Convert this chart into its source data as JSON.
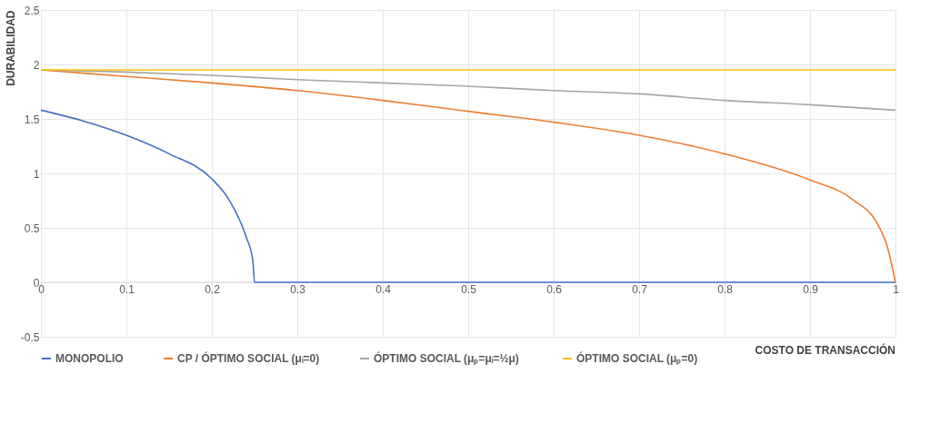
{
  "chart_data": {
    "type": "line",
    "xlabel": "COSTO DE TRANSACCIÓN",
    "ylabel": "DURABILIDAD",
    "xlim": [
      0,
      1
    ],
    "xticks": [
      0,
      0.1,
      0.2,
      0.3,
      0.4,
      0.5,
      0.6,
      0.7,
      0.8,
      0.9,
      1
    ],
    "ylim": [
      -0.5,
      2.5
    ],
    "yticks": [
      -0.5,
      0,
      0.5,
      1,
      1.5,
      2,
      2.5
    ],
    "grid": true,
    "legend": "bottom",
    "line_style": "solid",
    "marker": "none",
    "series": [
      {
        "name": "MONOPOLIO",
        "color": "#4472c4",
        "x": [
          0,
          0.05,
          0.1,
          0.15,
          0.2,
          0.22,
          0.24,
          0.248,
          0.25,
          0.5,
          1
        ],
        "values": [
          1.58,
          1.48,
          1.35,
          1.18,
          0.95,
          0.76,
          0.42,
          0.2,
          0,
          0,
          0
        ]
      },
      {
        "name": "CP / ÓPTIMO SOCIAL (μᵢ=0)",
        "color": "#ed7d31",
        "x": [
          0,
          0.1,
          0.2,
          0.3,
          0.4,
          0.5,
          0.6,
          0.7,
          0.8,
          0.9,
          0.95,
          0.98,
          0.99,
          1
        ],
        "values": [
          1.95,
          1.89,
          1.83,
          1.76,
          1.67,
          1.57,
          1.47,
          1.35,
          1.18,
          0.94,
          0.76,
          0.52,
          0.34,
          0
        ]
      },
      {
        "name": "ÓPTIMO SOCIAL  (μₚ=μᵢ=½μ)",
        "color": "#a5a5a5",
        "x": [
          0,
          0.1,
          0.2,
          0.3,
          0.4,
          0.5,
          0.6,
          0.7,
          0.8,
          0.9,
          1
        ],
        "values": [
          1.95,
          1.93,
          1.9,
          1.86,
          1.83,
          1.8,
          1.76,
          1.73,
          1.67,
          1.63,
          1.58
        ]
      },
      {
        "name": "ÓPTIMO SOCIAL  (μₚ=0)",
        "color": "#ffc000",
        "x": [
          0,
          1
        ],
        "values": [
          1.95,
          1.95
        ]
      }
    ]
  }
}
